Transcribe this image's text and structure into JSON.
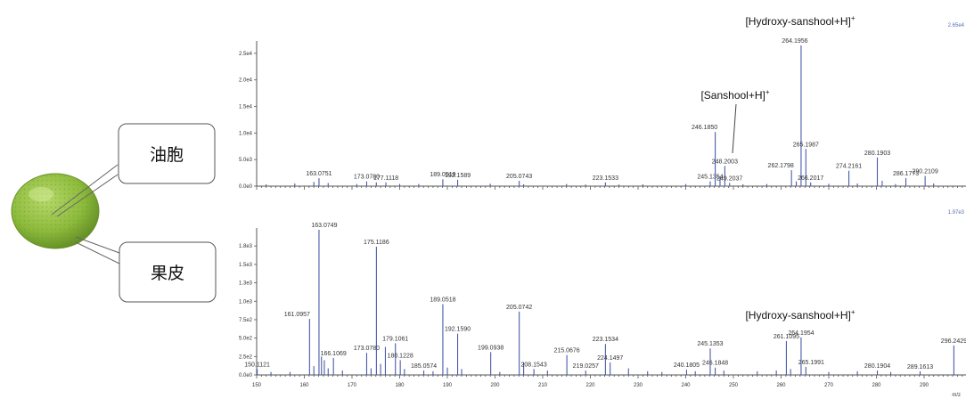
{
  "callouts": [
    {
      "label": "油胞"
    },
    {
      "label": "果皮"
    }
  ],
  "colors": {
    "peak": "#4a5bab",
    "axis": "#555555",
    "fruit": "#8dbb3c",
    "fruit_dark": "#5e8a22",
    "max_label": "#5a6fb5"
  },
  "chart_data": [
    {
      "type": "bar",
      "panel": "top",
      "title": "",
      "xlabel": "",
      "ylabel": "",
      "xlim": [
        150,
        300
      ],
      "ylim": [
        0,
        27000
      ],
      "yticks": [
        {
          "v": 0,
          "t": "0.0e0"
        },
        {
          "v": 5000,
          "t": "5.0e3"
        },
        {
          "v": 10000,
          "t": "1.0e4"
        },
        {
          "v": 15000,
          "t": "1.5e4"
        },
        {
          "v": 20000,
          "t": "2.0e4"
        },
        {
          "v": 25000,
          "t": "2.5e4"
        }
      ],
      "max_label": "2.65e4",
      "peaks": [
        {
          "mz": 152.0,
          "i": 350
        },
        {
          "mz": 158.0,
          "i": 500
        },
        {
          "mz": 162.0,
          "i": 800
        },
        {
          "mz": 163.0751,
          "i": 1500,
          "label": "163.0751"
        },
        {
          "mz": 165.0,
          "i": 600
        },
        {
          "mz": 171.0,
          "i": 400
        },
        {
          "mz": 173.078,
          "i": 900,
          "label": "173.0780"
        },
        {
          "mz": 175.1,
          "i": 700
        },
        {
          "mz": 177.1118,
          "i": 700,
          "label": "177.1118"
        },
        {
          "mz": 180.0,
          "i": 400
        },
        {
          "mz": 184.0,
          "i": 400
        },
        {
          "mz": 189.0519,
          "i": 1300,
          "label": "189.0519"
        },
        {
          "mz": 192.1589,
          "i": 1200,
          "label": "192.1589"
        },
        {
          "mz": 199.0,
          "i": 450
        },
        {
          "mz": 205.0743,
          "i": 1000,
          "label": "205.0743"
        },
        {
          "mz": 206.0,
          "i": 350
        },
        {
          "mz": 215.0,
          "i": 400
        },
        {
          "mz": 219.0,
          "i": 300
        },
        {
          "mz": 223.1533,
          "i": 700,
          "label": "223.1533"
        },
        {
          "mz": 226.0,
          "i": 300
        },
        {
          "mz": 231.0,
          "i": 350
        },
        {
          "mz": 240.0,
          "i": 400
        },
        {
          "mz": 245.1354,
          "i": 900,
          "label": "245.1354"
        },
        {
          "mz": 246.185,
          "i": 10200,
          "label": "246.1850"
        },
        {
          "mz": 247.19,
          "i": 1600
        },
        {
          "mz": 248.2003,
          "i": 3800,
          "label": "248.2003"
        },
        {
          "mz": 249.2037,
          "i": 600,
          "label": "249.2037"
        },
        {
          "mz": 252.0,
          "i": 350
        },
        {
          "mz": 257.0,
          "i": 400
        },
        {
          "mz": 262.1798,
          "i": 3000,
          "label": "262.1798"
        },
        {
          "mz": 263.18,
          "i": 900
        },
        {
          "mz": 264.1956,
          "i": 26500,
          "label": "264.1956"
        },
        {
          "mz": 265.1987,
          "i": 7000,
          "label": "265.1987"
        },
        {
          "mz": 266.2017,
          "i": 700,
          "label": "266.2017"
        },
        {
          "mz": 270.0,
          "i": 450
        },
        {
          "mz": 274.2161,
          "i": 2900,
          "label": "274.2161"
        },
        {
          "mz": 276.0,
          "i": 500
        },
        {
          "mz": 280.1903,
          "i": 5400,
          "label": "280.1903"
        },
        {
          "mz": 281.2,
          "i": 1000
        },
        {
          "mz": 284.0,
          "i": 400
        },
        {
          "mz": 286.1773,
          "i": 1500,
          "label": "286.1773"
        },
        {
          "mz": 290.2109,
          "i": 1900,
          "label": "290.2109"
        },
        {
          "mz": 292.0,
          "i": 500
        }
      ],
      "annotations": [
        {
          "text": "[Hydroxy-sanshool+H]",
          "sup": "+",
          "mz": 264.1956
        },
        {
          "text": "[Sanshool+H]",
          "sup": "+",
          "mz": 248.2003
        }
      ]
    },
    {
      "type": "bar",
      "panel": "bottom",
      "title": "",
      "xlabel": "m/z",
      "ylabel": "",
      "xlim": [
        150,
        300
      ],
      "ylim": [
        0,
        1970
      ],
      "yticks": [
        {
          "v": 0,
          "t": "0.0e0"
        },
        {
          "v": 250,
          "t": "2.5e2"
        },
        {
          "v": 500,
          "t": "5.0e2"
        },
        {
          "v": 750,
          "t": "7.5e2"
        },
        {
          "v": 1000,
          "t": "1.0e3"
        },
        {
          "v": 1250,
          "t": "1.3e3"
        },
        {
          "v": 1500,
          "t": "1.5e3"
        },
        {
          "v": 1750,
          "t": "1.8e3"
        }
      ],
      "xticks": [
        150,
        160,
        170,
        180,
        190,
        200,
        210,
        220,
        230,
        240,
        250,
        260,
        270,
        280,
        290
      ],
      "max_label": "1.97e3",
      "peaks": [
        {
          "mz": 150.1121,
          "i": 80,
          "label": "150.1121"
        },
        {
          "mz": 153.0,
          "i": 40
        },
        {
          "mz": 157.0,
          "i": 40
        },
        {
          "mz": 161.0957,
          "i": 760,
          "label": "161.0957"
        },
        {
          "mz": 162.0,
          "i": 120
        },
        {
          "mz": 163.0749,
          "i": 1970,
          "label": "163.0749"
        },
        {
          "mz": 163.6,
          "i": 250
        },
        {
          "mz": 164.2,
          "i": 200
        },
        {
          "mz": 165.0,
          "i": 90
        },
        {
          "mz": 166.1069,
          "i": 230,
          "label": "166.1069"
        },
        {
          "mz": 168.0,
          "i": 60
        },
        {
          "mz": 173.078,
          "i": 300,
          "label": "173.0780"
        },
        {
          "mz": 174.0,
          "i": 90
        },
        {
          "mz": 175.1186,
          "i": 1740,
          "label": "175.1186"
        },
        {
          "mz": 176.0,
          "i": 150
        },
        {
          "mz": 177.0,
          "i": 380
        },
        {
          "mz": 179.1061,
          "i": 430,
          "label": "179.1061"
        },
        {
          "mz": 180.1228,
          "i": 200,
          "label": "180.1228"
        },
        {
          "mz": 181.0,
          "i": 80
        },
        {
          "mz": 185.0574,
          "i": 60,
          "label": "185.0574"
        },
        {
          "mz": 187.0,
          "i": 50
        },
        {
          "mz": 189.0518,
          "i": 960,
          "label": "189.0518"
        },
        {
          "mz": 190.0,
          "i": 100
        },
        {
          "mz": 192.159,
          "i": 560,
          "label": "192.1590"
        },
        {
          "mz": 193.0,
          "i": 80
        },
        {
          "mz": 199.0938,
          "i": 310,
          "label": "199.0938"
        },
        {
          "mz": 201.0,
          "i": 40
        },
        {
          "mz": 205.0742,
          "i": 860,
          "label": "205.0742"
        },
        {
          "mz": 206.0,
          "i": 170
        },
        {
          "mz": 208.1543,
          "i": 80,
          "label": "208.1543"
        },
        {
          "mz": 211.0,
          "i": 60
        },
        {
          "mz": 215.0676,
          "i": 270,
          "label": "215.0676"
        },
        {
          "mz": 219.0257,
          "i": 60,
          "label": "219.0257"
        },
        {
          "mz": 223.1534,
          "i": 420,
          "label": "223.1534"
        },
        {
          "mz": 224.1497,
          "i": 170,
          "label": "224.1497"
        },
        {
          "mz": 228.0,
          "i": 90
        },
        {
          "mz": 232.0,
          "i": 50
        },
        {
          "mz": 235.0,
          "i": 40
        },
        {
          "mz": 240.1805,
          "i": 70,
          "label": "240.1805"
        },
        {
          "mz": 242.0,
          "i": 50
        },
        {
          "mz": 245.1353,
          "i": 360,
          "label": "245.1353"
        },
        {
          "mz": 246.1848,
          "i": 100,
          "label": "246.1848"
        },
        {
          "mz": 248.0,
          "i": 60
        },
        {
          "mz": 255.0,
          "i": 50
        },
        {
          "mz": 259.0,
          "i": 60
        },
        {
          "mz": 261.1095,
          "i": 460,
          "label": "261.1095"
        },
        {
          "mz": 262.0,
          "i": 80
        },
        {
          "mz": 264.1954,
          "i": 510,
          "label": "264.1954"
        },
        {
          "mz": 265.1991,
          "i": 110,
          "label": "265.1991"
        },
        {
          "mz": 270.0,
          "i": 40
        },
        {
          "mz": 276.0,
          "i": 50
        },
        {
          "mz": 280.1904,
          "i": 60,
          "label": "280.1904"
        },
        {
          "mz": 283.0,
          "i": 40
        },
        {
          "mz": 289.1613,
          "i": 50,
          "label": "289.1613"
        },
        {
          "mz": 296.2429,
          "i": 400,
          "label": "296.2429"
        }
      ],
      "annotations": [
        {
          "text": "[Hydroxy-sanshool+H]",
          "sup": "+",
          "mz": 264.1954
        }
      ]
    }
  ]
}
